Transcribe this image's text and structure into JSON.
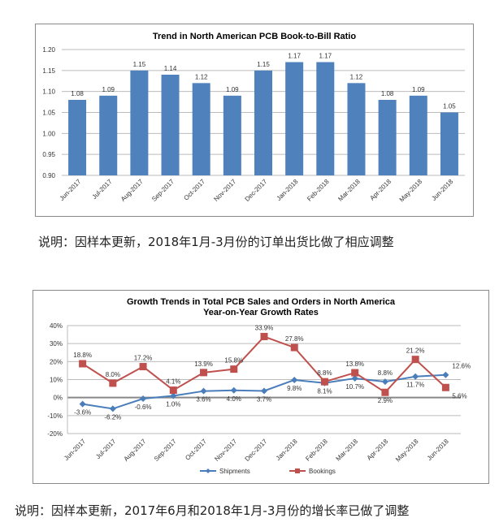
{
  "chart_data": [
    {
      "type": "bar",
      "title": "Trend in North American PCB Book-to-Bill Ratio",
      "categories": [
        "Jun-2017",
        "Jul-2017",
        "Aug-2017",
        "Sep-2017",
        "Oct-2017",
        "Nov-2017",
        "Dec-2017",
        "Jan-2018",
        "Feb-2018",
        "Mar-2018",
        "Apr-2018",
        "May-2018",
        "Jun-2018"
      ],
      "values": [
        1.08,
        1.09,
        1.15,
        1.14,
        1.12,
        1.09,
        1.15,
        1.17,
        1.17,
        1.12,
        1.08,
        1.09,
        1.05
      ],
      "ylim": [
        0.9,
        1.2
      ],
      "yticks": [
        "1.20",
        "1.15",
        "1.10",
        "1.05",
        "1.00",
        "0.95",
        "0.90"
      ],
      "grid": true,
      "color": "#4f81bd"
    },
    {
      "type": "line",
      "title": "Growth Trends in Total PCB Sales and Orders in North America",
      "subtitle": "Year-on-Year Growth Rates",
      "categories": [
        "Jun-2017",
        "Jul-2017",
        "Aug-2017",
        "Sep-2017",
        "Oct-2017",
        "Nov-2017",
        "Dec-2017",
        "Jan-2018",
        "Feb-2018",
        "Mar-2018",
        "Apr-2018",
        "May-2018",
        "Jun-2018"
      ],
      "series": [
        {
          "name": "Shipments",
          "color": "#4a7ebb",
          "values": [
            -3.6,
            -6.2,
            -0.6,
            1.0,
            3.6,
            4.0,
            3.7,
            9.8,
            8.1,
            10.7,
            8.8,
            11.7,
            12.6
          ]
        },
        {
          "name": "Bookings",
          "color": "#c0504d",
          "values": [
            18.8,
            8.0,
            17.2,
            4.1,
            13.9,
            15.8,
            33.9,
            27.8,
            8.8,
            13.8,
            2.9,
            21.2,
            5.6
          ]
        }
      ],
      "ylim": [
        -20,
        40
      ],
      "yticks": [
        "40%",
        "30%",
        "20%",
        "10%",
        "0%",
        "-10%",
        "-20%"
      ],
      "grid": true,
      "legend": "bottom"
    }
  ],
  "captions": [
    "说明：因样本更新，2018年1月-3月份的订单出货比做了相应调整",
    "说明：因样本更新，2017年6月和2018年1月-3月份的增长率已做了调整"
  ]
}
